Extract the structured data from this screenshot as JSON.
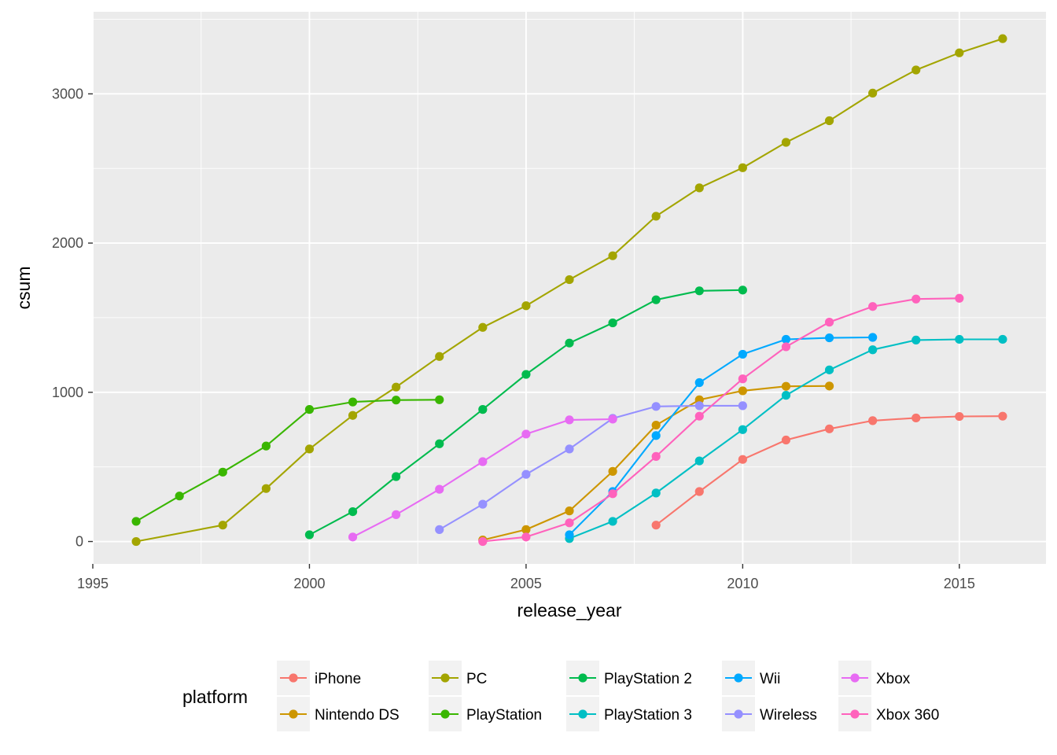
{
  "chart_data": {
    "type": "line",
    "xlabel": "release_year",
    "ylabel": "csum",
    "xlim": [
      1995,
      2017
    ],
    "ylim": [
      -150,
      3550
    ],
    "x_ticks": [
      1995,
      2000,
      2005,
      2010,
      2015
    ],
    "y_ticks": [
      0,
      1000,
      2000,
      3000
    ],
    "x_tick_labels": [
      "1995",
      "2000",
      "2005",
      "2010",
      "2015"
    ],
    "y_tick_labels": [
      "0",
      "1000",
      "2000",
      "3000"
    ],
    "grid": true,
    "background": "#ebebeb",
    "legend": {
      "title": "platform",
      "position": "bottom"
    },
    "series": [
      {
        "name": "iPhone",
        "color": "#F8766D",
        "x": [
          2008,
          2009,
          2010,
          2011,
          2012,
          2013,
          2014,
          2015,
          2016
        ],
        "y": [
          110,
          335,
          550,
          680,
          755,
          810,
          828,
          838,
          840
        ]
      },
      {
        "name": "Nintendo DS",
        "color": "#CD9600",
        "x": [
          2004,
          2005,
          2006,
          2007,
          2008,
          2009,
          2010,
          2011,
          2012
        ],
        "y": [
          10,
          80,
          205,
          470,
          780,
          950,
          1010,
          1040,
          1042
        ]
      },
      {
        "name": "PC",
        "color": "#A3A500",
        "x": [
          1996,
          1998,
          1999,
          2000,
          2001,
          2002,
          2003,
          2004,
          2005,
          2006,
          2007,
          2008,
          2009,
          2010,
          2011,
          2012,
          2013,
          2014,
          2015,
          2016
        ],
        "y": [
          0,
          110,
          355,
          620,
          845,
          1035,
          1240,
          1435,
          1580,
          1755,
          1915,
          2180,
          2370,
          2505,
          2675,
          2820,
          3005,
          3160,
          3275,
          3370
        ]
      },
      {
        "name": "PlayStation",
        "color": "#39B600",
        "x": [
          1996,
          1997,
          1998,
          1999,
          2000,
          2001,
          2002,
          2003
        ],
        "y": [
          135,
          305,
          465,
          640,
          885,
          935,
          948,
          950
        ]
      },
      {
        "name": "PlayStation 2",
        "color": "#00BB4E",
        "x": [
          2000,
          2001,
          2002,
          2003,
          2004,
          2005,
          2006,
          2007,
          2008,
          2009,
          2010
        ],
        "y": [
          45,
          200,
          435,
          655,
          885,
          1120,
          1330,
          1465,
          1620,
          1680,
          1685
        ]
      },
      {
        "name": "PlayStation 3",
        "color": "#00BFC4",
        "x": [
          2006,
          2007,
          2008,
          2009,
          2010,
          2011,
          2012,
          2013,
          2014,
          2015,
          2016
        ],
        "y": [
          20,
          135,
          325,
          540,
          750,
          980,
          1150,
          1285,
          1350,
          1355,
          1355
        ]
      },
      {
        "name": "Wii",
        "color": "#00A9FF",
        "x": [
          2006,
          2007,
          2008,
          2009,
          2010,
          2011,
          2012,
          2013
        ],
        "y": [
          45,
          335,
          710,
          1065,
          1255,
          1355,
          1365,
          1368
        ]
      },
      {
        "name": "Wireless",
        "color": "#9590FF",
        "x": [
          2003,
          2004,
          2005,
          2006,
          2007,
          2008,
          2009,
          2010
        ],
        "y": [
          80,
          250,
          450,
          620,
          825,
          905,
          910,
          910
        ]
      },
      {
        "name": "Xbox",
        "color": "#E76BF3",
        "x": [
          2001,
          2002,
          2003,
          2004,
          2005,
          2006,
          2007
        ],
        "y": [
          30,
          180,
          350,
          535,
          720,
          815,
          820
        ]
      },
      {
        "name": "Xbox 360",
        "color": "#FF62BC",
        "x": [
          2004,
          2005,
          2006,
          2007,
          2008,
          2009,
          2010,
          2011,
          2012,
          2013,
          2014,
          2015
        ],
        "y": [
          0,
          30,
          125,
          320,
          570,
          840,
          1090,
          1305,
          1470,
          1575,
          1625,
          1630
        ]
      }
    ]
  }
}
